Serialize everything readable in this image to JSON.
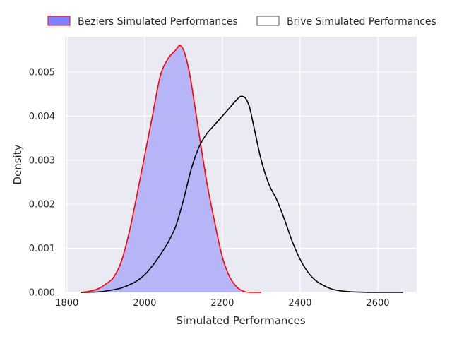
{
  "chart_data": {
    "type": "area",
    "title": "",
    "xlabel": "Simulated Performances",
    "ylabel": "Density",
    "xlim": [
      1795,
      2700
    ],
    "ylim": [
      0,
      0.0058
    ],
    "xticks": [
      1800,
      2000,
      2200,
      2400,
      2600
    ],
    "xtick_labels": [
      "1800",
      "2000",
      "2200",
      "2400",
      "2600"
    ],
    "yticks": [
      0,
      0.001,
      0.002,
      0.003,
      0.004,
      0.005
    ],
    "ytick_labels": [
      "0.000",
      "0.001",
      "0.002",
      "0.003",
      "0.004",
      "0.005"
    ],
    "grid": true,
    "background": "#eaeaf2",
    "legend_position": "top-center-outside",
    "legend": [
      {
        "label": "Beziers Simulated Performances",
        "fill": "#8080ff",
        "edge": "#ff0000"
      },
      {
        "label": "Brive Simulated Performances",
        "fill": "#ffffff",
        "edge": "#555555"
      }
    ],
    "series": [
      {
        "name": "Beziers Simulated Performances",
        "fill": "#b2b2f7",
        "line": "#ff0000",
        "filled": true,
        "x": [
          1835,
          1860,
          1880,
          1900,
          1920,
          1940,
          1960,
          1980,
          2000,
          2020,
          2040,
          2060,
          2080,
          2090,
          2100,
          2110,
          2120,
          2140,
          2160,
          2180,
          2200,
          2220,
          2240,
          2260,
          2280,
          2300
        ],
        "y": [
          0,
          3e-05,
          8e-05,
          0.00019,
          0.00034,
          0.0007,
          0.00135,
          0.0022,
          0.0031,
          0.004,
          0.0049,
          0.0053,
          0.0055,
          0.0056,
          0.0055,
          0.0052,
          0.00475,
          0.0036,
          0.0025,
          0.0016,
          0.0008,
          0.00033,
          0.0001,
          1e-05,
          0,
          0
        ]
      },
      {
        "name": "Brive Simulated Performances",
        "line": "#000000",
        "filled": false,
        "x": [
          1835,
          1880,
          1900,
          1920,
          1940,
          1960,
          1980,
          2000,
          2020,
          2040,
          2060,
          2080,
          2100,
          2120,
          2140,
          2160,
          2180,
          2200,
          2220,
          2240,
          2250,
          2260,
          2270,
          2280,
          2300,
          2320,
          2340,
          2360,
          2380,
          2400,
          2420,
          2440,
          2460,
          2480,
          2500,
          2520,
          2540,
          2560,
          2580,
          2600,
          2620,
          2665
        ],
        "y": [
          0,
          1e-05,
          3e-05,
          6e-05,
          0.0001,
          0.00017,
          0.00026,
          0.0004,
          0.0006,
          0.00085,
          0.00113,
          0.0015,
          0.0021,
          0.0028,
          0.0033,
          0.0036,
          0.0038,
          0.004,
          0.0042,
          0.0044,
          0.00445,
          0.0044,
          0.0042,
          0.0038,
          0.003,
          0.00245,
          0.0021,
          0.00165,
          0.00115,
          0.00075,
          0.00046,
          0.00027,
          0.00016,
          8e-05,
          4e-05,
          2e-05,
          1e-05,
          5e-06,
          0,
          0,
          0,
          0
        ]
      }
    ]
  }
}
